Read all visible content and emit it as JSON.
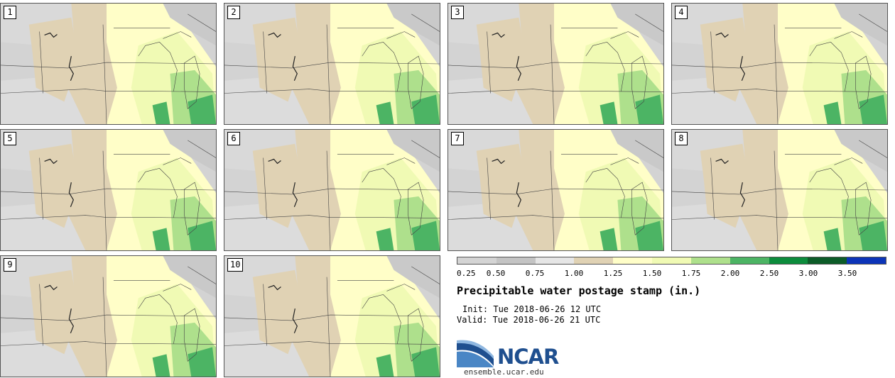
{
  "figure": {
    "title": "Precipitable water postage stamp (in.)",
    "init": "Init: Tue 2018-06-26 12 UTC",
    "valid": "Valid: Tue 2018-06-26 21 UTC"
  },
  "members": [
    "1",
    "2",
    "3",
    "4",
    "5",
    "6",
    "7",
    "8",
    "9",
    "10"
  ],
  "colorbar": {
    "ticks": [
      "0.25",
      "0.50",
      "0.75",
      "1.00",
      "1.25",
      "1.50",
      "1.75",
      "2.00",
      "2.50",
      "3.00",
      "3.50"
    ],
    "colors": [
      "#d4d4d4",
      "#c4c4c4",
      "#e6e6e6",
      "#e0d2b4",
      "#fffec8",
      "#f0fab4",
      "#aee08c",
      "#4cb464",
      "#0c8c3c",
      "#0c5c28",
      "#0c34b8"
    ]
  },
  "logo": {
    "name": "NCAR",
    "url": "ensemble.ucar.edu"
  }
}
